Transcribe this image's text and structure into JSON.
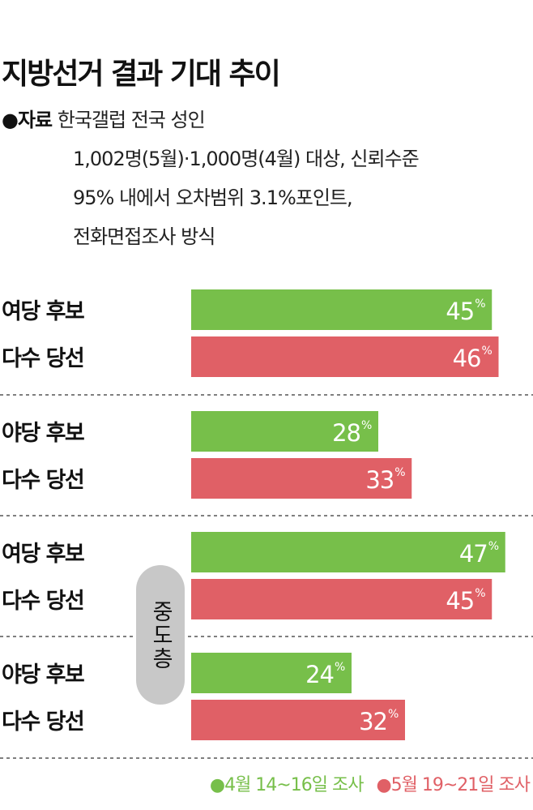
{
  "title": "지방선거 결과 기대 추이",
  "source": {
    "label": "●자료",
    "lines": [
      "한국갤럽 전국 성인",
      "1,002명(5월)·1,000명(4월) 대상, 신뢰수준",
      "95% 내에서 오차범위 3.1%포인트,",
      "전화면접조사 방식"
    ]
  },
  "group_label": "중도층",
  "colors": {
    "april": "#77bf4a",
    "may": "#e06066"
  },
  "legend": {
    "april": "●4월 14~16일 조사",
    "may": "●5월 19~21일 조사"
  },
  "chart_data": {
    "type": "bar",
    "orientation": "horizontal",
    "unit": "%",
    "categories": [
      "여당 후보\n다수 당선",
      "야당 후보\n다수 당선",
      "여당 후보\n다수 당선",
      "야당 후보\n다수 당선"
    ],
    "category_lines": [
      [
        "여당 후보",
        "다수 당선"
      ],
      [
        "야당 후보",
        "다수 당선"
      ],
      [
        "여당 후보",
        "다수 당선"
      ],
      [
        "야당 후보",
        "다수 당선"
      ]
    ],
    "series": [
      {
        "name": "4월 14~16일 조사",
        "values": [
          45,
          28,
          47,
          24
        ]
      },
      {
        "name": "5월 19~21일 조사",
        "values": [
          46,
          33,
          45,
          32
        ]
      }
    ],
    "bracket_groups": [
      {
        "label": "중도층",
        "category_indices": [
          2,
          3
        ]
      }
    ]
  }
}
